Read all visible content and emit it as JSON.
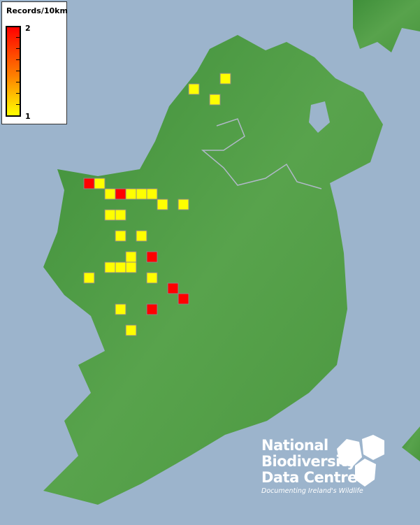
{
  "legend": {
    "title": "Records/10km",
    "max_label": "2",
    "min_label": "1",
    "colors": {
      "max": "#ff0000",
      "min": "#ffff00"
    }
  },
  "logo": {
    "line1": "National",
    "line2": "Biodiversity",
    "line3": "Data Centre",
    "tagline": "Documenting Ireland's Wildlife"
  },
  "colors": {
    "sea": "#9cb4cc",
    "land": "#4c9c44",
    "record_1": "#ffff00",
    "record_2": "#ff0000"
  },
  "records": [
    {
      "col": 0,
      "row": 0,
      "count": 2
    },
    {
      "col": 1,
      "row": 0,
      "count": 1
    },
    {
      "col": 2,
      "row": 1,
      "count": 1
    },
    {
      "col": 3,
      "row": 1,
      "count": 2
    },
    {
      "col": 4,
      "row": 1,
      "count": 1
    },
    {
      "col": 5,
      "row": 1,
      "count": 1
    },
    {
      "col": 6,
      "row": 1,
      "count": 1
    },
    {
      "col": 7,
      "row": 2,
      "count": 1
    },
    {
      "col": 9,
      "row": 2,
      "count": 1
    },
    {
      "col": 2,
      "row": 3,
      "count": 1
    },
    {
      "col": 3,
      "row": 3,
      "count": 1
    },
    {
      "col": 3,
      "row": 5,
      "count": 1
    },
    {
      "col": 5,
      "row": 5,
      "count": 1
    },
    {
      "col": 4,
      "row": 7,
      "count": 1
    },
    {
      "col": 6,
      "row": 7,
      "count": 2
    },
    {
      "col": 2,
      "row": 8,
      "count": 1
    },
    {
      "col": 3,
      "row": 8,
      "count": 1
    },
    {
      "col": 4,
      "row": 8,
      "count": 1
    },
    {
      "col": 0,
      "row": 9,
      "count": 1
    },
    {
      "col": 6,
      "row": 9,
      "count": 1
    },
    {
      "col": 8,
      "row": 10,
      "count": 2
    },
    {
      "col": 9,
      "row": 11,
      "count": 2
    },
    {
      "col": 3,
      "row": 12,
      "count": 1
    },
    {
      "col": 6,
      "row": 12,
      "count": 2
    },
    {
      "col": 4,
      "row": 14,
      "count": 1
    },
    {
      "col": 10,
      "row": -9,
      "count": 1
    },
    {
      "col": 12,
      "row": -8,
      "count": 1
    },
    {
      "col": 13,
      "row": -10,
      "count": 1
    }
  ]
}
